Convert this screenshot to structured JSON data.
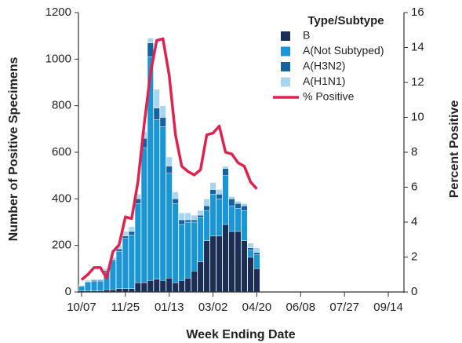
{
  "chart_data": {
    "type": "bar",
    "stacked": true,
    "x_label": "Week Ending Date",
    "y_label": "Number of Positive Specimens",
    "y2_label": "Percent Positive",
    "legend_title": "Type/Subtype",
    "categories": [
      "10/07",
      null,
      null,
      null,
      null,
      null,
      null,
      "11/25",
      null,
      null,
      null,
      null,
      null,
      null,
      "01/13",
      null,
      null,
      null,
      null,
      null,
      null,
      "03/02",
      null,
      null,
      null,
      null,
      null,
      null,
      "04/20",
      null,
      null,
      null,
      null,
      null,
      null,
      "06/08",
      null,
      null,
      null,
      null,
      null,
      null,
      "07/27",
      null,
      null,
      null,
      null,
      null,
      null,
      "09/14",
      null,
      null
    ],
    "series": [
      {
        "name": "B",
        "color": "#1b2f56",
        "values": [
          5,
          5,
          5,
          5,
          10,
          10,
          15,
          15,
          15,
          40,
          40,
          50,
          55,
          50,
          60,
          40,
          50,
          60,
          90,
          130,
          220,
          240,
          240,
          290,
          260,
          260,
          220,
          150,
          100,
          null,
          null,
          null,
          null,
          null,
          null,
          null,
          null,
          null,
          null,
          null,
          null,
          null,
          null,
          null,
          null,
          null,
          null,
          null,
          null,
          null,
          null,
          null
        ]
      },
      {
        "name": "A(Not Subtyped)",
        "color": "#1a96d4",
        "values": [
          20,
          37,
          40,
          40,
          77,
          125,
          160,
          215,
          230,
          340,
          580,
          960,
          685,
          660,
          450,
          340,
          240,
          240,
          210,
          190,
          130,
          180,
          160,
          210,
          110,
          100,
          130,
          30,
          60,
          null,
          null,
          null,
          null,
          null,
          null,
          null,
          null,
          null,
          null,
          null,
          null,
          null,
          null,
          null,
          null,
          null,
          null,
          null,
          null,
          null,
          null,
          null
        ]
      },
      {
        "name": "A(H3N2)",
        "color": "#15629f",
        "values": [
          2,
          3,
          5,
          5,
          5,
          5,
          10,
          10,
          15,
          20,
          40,
          60,
          50,
          40,
          30,
          20,
          20,
          10,
          10,
          10,
          20,
          20,
          20,
          30,
          30,
          20,
          20,
          10,
          10,
          null,
          null,
          null,
          null,
          null,
          null,
          null,
          null,
          null,
          null,
          null,
          null,
          null,
          null,
          null,
          null,
          null,
          null,
          null,
          null,
          null,
          null,
          null
        ]
      },
      {
        "name": "A(H1N1)",
        "color": "#a9d5ef",
        "values": [
          3,
          5,
          5,
          5,
          8,
          10,
          15,
          20,
          20,
          20,
          30,
          20,
          80,
          50,
          40,
          30,
          30,
          30,
          20,
          20,
          30,
          30,
          20,
          10,
          10,
          10,
          10,
          20,
          20,
          null,
          null,
          null,
          null,
          null,
          null,
          null,
          null,
          null,
          null,
          null,
          null,
          null,
          null,
          null,
          null,
          null,
          null,
          null,
          null,
          null,
          null,
          null
        ]
      },
      {
        "name": "% Positive",
        "type": "line",
        "axis": "y2",
        "color": "#e0234e",
        "values": [
          0.7,
          1.0,
          1.4,
          1.4,
          0.8,
          2.3,
          2.7,
          4.3,
          4.2,
          6.3,
          9.6,
          12.5,
          14.4,
          14.5,
          12.4,
          9.0,
          7.2,
          6.9,
          6.7,
          7.0,
          9.0,
          9.1,
          9.5,
          8.0,
          7.9,
          7.4,
          7.2,
          6.3,
          5.9,
          null,
          null,
          null,
          null,
          null,
          null,
          null,
          null,
          null,
          null,
          null,
          null,
          null,
          null,
          null,
          null,
          null,
          null,
          null,
          null,
          null,
          null,
          null
        ]
      }
    ],
    "ylim": [
      0,
      1200
    ],
    "yticks": [
      0,
      200,
      400,
      600,
      800,
      1000,
      1200
    ],
    "y2lim": [
      0,
      16
    ],
    "y2ticks": [
      0,
      2,
      4,
      6,
      8,
      10,
      12,
      14,
      16
    ],
    "grid": false
  }
}
